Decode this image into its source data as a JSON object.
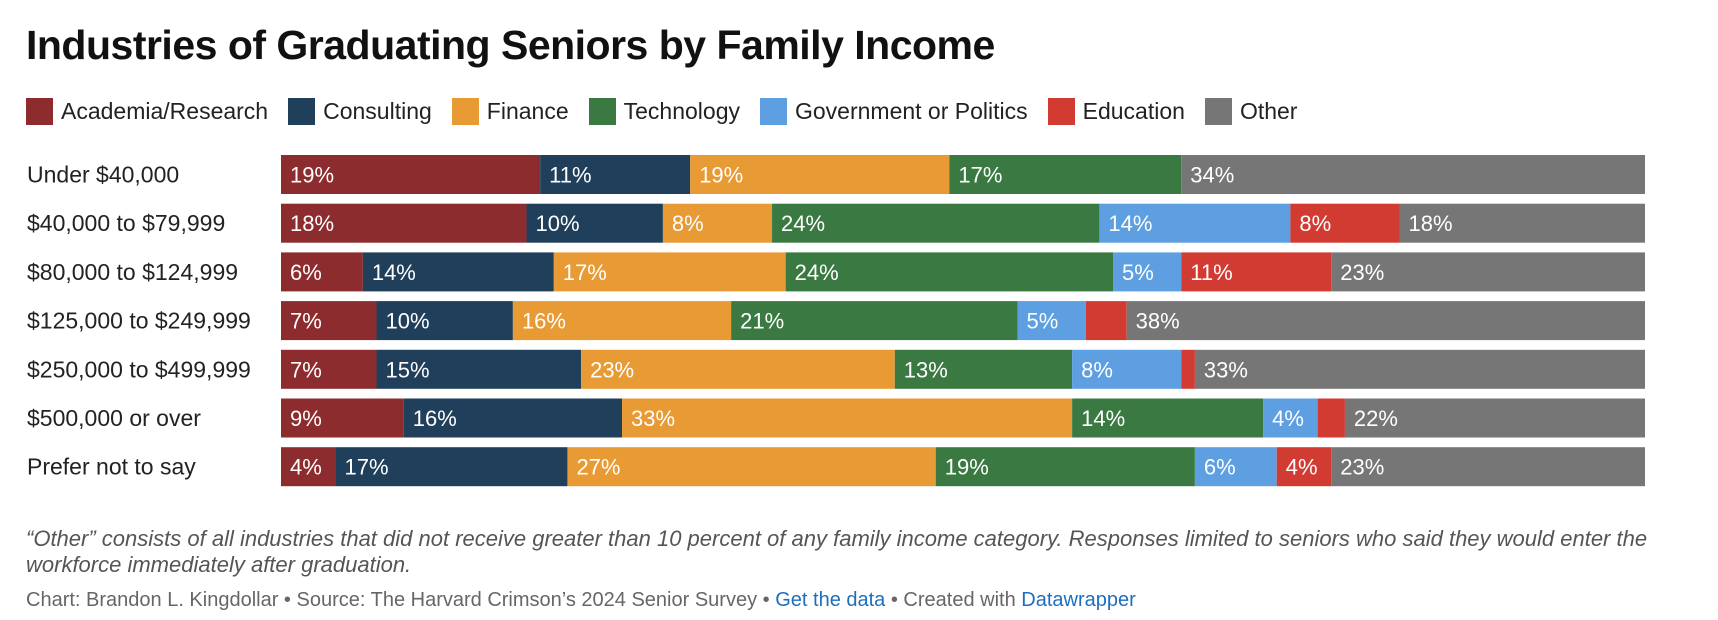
{
  "title": "Industries of Graduating Seniors by Family Income",
  "legend": [
    {
      "label": "Academia/Research",
      "color": "#8d2c2e"
    },
    {
      "label": "Consulting",
      "color": "#1f3f5b"
    },
    {
      "label": "Finance",
      "color": "#e89a34"
    },
    {
      "label": "Technology",
      "color": "#3a7a42"
    },
    {
      "label": "Government or Politics",
      "color": "#5d9fe0"
    },
    {
      "label": "Education",
      "color": "#d13b32"
    },
    {
      "label": "Other",
      "color": "#767676"
    }
  ],
  "chart_data": {
    "type": "bar",
    "stacked": true,
    "orientation": "horizontal",
    "normalized_to_percent": true,
    "categories": [
      "Under $40,000",
      "$40,000 to $79,999",
      "$80,000 to $124,999",
      "$125,000 to $249,999",
      "$250,000 to $499,999",
      "$500,000 or over",
      "Prefer not to say"
    ],
    "series": [
      {
        "name": "Academia/Research",
        "values": [
          19,
          18,
          6,
          7,
          7,
          9,
          4
        ],
        "labels": [
          "19%",
          "18%",
          "6%",
          "7%",
          "7%",
          "9%",
          "4%"
        ]
      },
      {
        "name": "Consulting",
        "values": [
          11,
          10,
          14,
          10,
          15,
          16,
          17
        ],
        "labels": [
          "11%",
          "10%",
          "14%",
          "10%",
          "15%",
          "16%",
          "17%"
        ]
      },
      {
        "name": "Finance",
        "values": [
          19,
          8,
          17,
          16,
          23,
          33,
          27
        ],
        "labels": [
          "19%",
          "8%",
          "17%",
          "16%",
          "23%",
          "33%",
          "27%"
        ]
      },
      {
        "name": "Technology",
        "values": [
          17,
          24,
          24,
          21,
          13,
          14,
          19
        ],
        "labels": [
          "17%",
          "24%",
          "24%",
          "21%",
          "13%",
          "14%",
          "19%"
        ]
      },
      {
        "name": "Government or Politics",
        "values": [
          0,
          14,
          5,
          5,
          8,
          4,
          6
        ],
        "labels": [
          "",
          "14%",
          "5%",
          "5%",
          "8%",
          "4%",
          "6%"
        ]
      },
      {
        "name": "Education",
        "values": [
          0,
          8,
          11,
          3,
          1,
          2,
          4
        ],
        "labels": [
          "",
          "8%",
          "11%",
          "",
          "",
          "",
          "4%"
        ]
      },
      {
        "name": "Other",
        "values": [
          34,
          18,
          23,
          38,
          33,
          22,
          23
        ],
        "labels": [
          "34%",
          "18%",
          "23%",
          "38%",
          "33%",
          "22%",
          "23%"
        ]
      }
    ]
  },
  "notes": "“Other” consists of all industries that did not receive greater than 10 percent of any family income category. Responses limited to seniors who said they would enter the workforce immediately after graduation.",
  "source": {
    "chart_by": "Chart: Brandon L. Kingdollar",
    "separator": " • ",
    "source_text": "Source: The Harvard Crimson’s 2024 Senior Survey",
    "get_data": "Get the data",
    "created_with": "Created with ",
    "tool": "Datawrapper"
  }
}
